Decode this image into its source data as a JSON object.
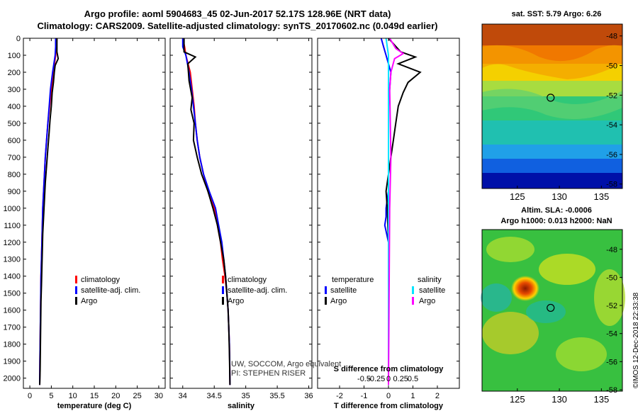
{
  "header": {
    "title_line1": "Argo profile: aoml 5904683_45 02-Jun-2017 52.17S 128.96E (NRT data)",
    "title_line2": "Climatology: CARS2009. Satellite-adjusted climatology: synTS_20170602.nc (0.049d earlier)"
  },
  "credits": {
    "line1": "UW, SOCCOM, Argo equivalent",
    "line2": "PI: STEPHEN RISER",
    "stamp": "©IMOS 12-Dec-2018 22:33:38"
  },
  "maps": {
    "sst_title": "sat. SST: 5.79 Argo: 6.26",
    "sla_title1": "Altim. SLA: -0.0006",
    "sla_title2": "Argo h1000: 0.013 h2000: NaN",
    "lon_ticks": [
      "125",
      "130",
      "135"
    ],
    "lat_ticks": [
      "-48",
      "-50",
      "-52",
      "-54",
      "-56",
      "-58"
    ],
    "float_lon": 128.96,
    "float_lat": -52.17
  },
  "colors": {
    "climatology": "#ff0000",
    "satellite": "#0000ff",
    "argo": "#000000",
    "s_satellite": "#00e5ff",
    "s_argo": "#ff00ff"
  },
  "chart_data": [
    {
      "type": "line",
      "xlabel": "temperature (deg C)",
      "ylabel": "",
      "xlim": [
        -1.5,
        31.5
      ],
      "ylim": [
        2060,
        0
      ],
      "xticks": [
        0,
        5,
        10,
        15,
        20,
        25,
        30
      ],
      "yticks": [
        0,
        100,
        200,
        300,
        400,
        500,
        600,
        700,
        800,
        900,
        1000,
        1100,
        1200,
        1300,
        1400,
        1500,
        1600,
        1700,
        1800,
        1900,
        2000
      ],
      "legend": [
        "climatology",
        "satellite-adj. clim.",
        "Argo"
      ],
      "series": [
        {
          "name": "climatology",
          "x": [
            6.3,
            6.2,
            6.0,
            5.5,
            5.0,
            4.6,
            4.2,
            3.9,
            3.6,
            3.4,
            3.2,
            3.0,
            2.9,
            2.8,
            2.7,
            2.6,
            2.55,
            2.5,
            2.45,
            2.4,
            2.35,
            2.3
          ],
          "y": [
            0,
            50,
            100,
            200,
            300,
            400,
            500,
            600,
            700,
            800,
            900,
            1000,
            1100,
            1200,
            1300,
            1400,
            1500,
            1600,
            1700,
            1800,
            1900,
            2040
          ]
        },
        {
          "name": "satellite-adj. clim.",
          "x": [
            6.0,
            6.0,
            5.9,
            5.3,
            4.8,
            4.5,
            4.2,
            3.9,
            3.6,
            3.4,
            3.2,
            3.0,
            2.9,
            2.8,
            2.7,
            2.6,
            2.55,
            2.5,
            2.45,
            2.4,
            2.35,
            2.3
          ],
          "y": [
            0,
            50,
            100,
            200,
            300,
            400,
            500,
            600,
            700,
            800,
            900,
            1000,
            1100,
            1200,
            1300,
            1400,
            1500,
            1600,
            1700,
            1800,
            1900,
            2040
          ]
        },
        {
          "name": "Argo",
          "x": [
            6.3,
            6.3,
            6.6,
            5.9,
            5.7,
            5.5,
            5.2,
            5.0,
            4.7,
            4.5,
            4.2,
            3.9,
            3.6,
            3.4,
            3.2,
            3.0,
            2.9,
            2.8,
            2.7,
            2.6,
            2.55,
            2.5,
            2.45,
            2.4,
            2.35,
            2.3
          ],
          "y": [
            0,
            80,
            120,
            160,
            200,
            260,
            320,
            400,
            480,
            550,
            650,
            750,
            850,
            950,
            1050,
            1150,
            1250,
            1350,
            1450,
            1550,
            1650,
            1750,
            1850,
            1950,
            2000,
            2040
          ]
        }
      ]
    },
    {
      "type": "line",
      "xlabel": "salinity",
      "ylabel": "",
      "xlim": [
        33.8,
        36.05
      ],
      "ylim": [
        2060,
        0
      ],
      "xticks": [
        34,
        34.5,
        35,
        35.5,
        36
      ],
      "xticklabels": [
        "34",
        "34.5",
        "35",
        "35.5",
        "36"
      ],
      "legend": [
        "climatology",
        "satellite-adj. clim.",
        "Argo"
      ],
      "series": [
        {
          "name": "climatology",
          "x": [
            34.0,
            34.03,
            34.05,
            34.12,
            34.15,
            34.18,
            34.2,
            34.23,
            34.27,
            34.33,
            34.4,
            34.5,
            34.55,
            34.6,
            34.63,
            34.67,
            34.7,
            34.72,
            34.73,
            34.74,
            34.745,
            34.75
          ],
          "y": [
            0,
            50,
            100,
            200,
            300,
            400,
            500,
            600,
            700,
            800,
            900,
            1000,
            1100,
            1200,
            1300,
            1400,
            1500,
            1600,
            1700,
            1800,
            1900,
            2040
          ]
        },
        {
          "name": "satellite-adj. clim.",
          "x": [
            34.0,
            34.0,
            34.05,
            34.1,
            34.14,
            34.17,
            34.2,
            34.23,
            34.27,
            34.33,
            34.42,
            34.52,
            34.57,
            34.62,
            34.65,
            34.68,
            34.7,
            34.72,
            34.73,
            34.74,
            34.745,
            34.75
          ],
          "y": [
            0,
            50,
            100,
            200,
            300,
            400,
            500,
            600,
            700,
            800,
            900,
            1000,
            1100,
            1200,
            1300,
            1400,
            1500,
            1600,
            1700,
            1800,
            1900,
            2040
          ]
        },
        {
          "name": "Argo",
          "x": [
            34.02,
            34.02,
            34.2,
            34.08,
            34.1,
            34.15,
            34.13,
            34.18,
            34.17,
            34.23,
            34.3,
            34.4,
            34.48,
            34.55,
            34.6,
            34.65,
            34.68,
            34.7,
            34.72,
            34.73,
            34.74,
            34.75
          ],
          "y": [
            0,
            80,
            110,
            150,
            250,
            350,
            420,
            500,
            600,
            700,
            800,
            900,
            1000,
            1100,
            1200,
            1300,
            1400,
            1500,
            1600,
            1700,
            1850,
            2040
          ]
        }
      ]
    },
    {
      "type": "line",
      "xlabel": "T difference from climatology",
      "xlabel2": "S difference from climatology",
      "xlim": [
        -2.9,
        2.9
      ],
      "ylim": [
        2060,
        0
      ],
      "xticks": [
        -2,
        -1,
        0,
        1,
        2
      ],
      "xticks2": [
        -0.5,
        -0.25,
        0,
        0.25,
        0.5
      ],
      "xticklabels2": [
        "-0.5",
        "-0.25",
        "0",
        "0.25",
        "0.5"
      ],
      "legend_temperature": [
        "temperature",
        "satellite",
        "Argo"
      ],
      "legend_salinity": [
        "salinity",
        "satellite",
        "Argo"
      ],
      "series": [
        {
          "name": "satellite",
          "x": [
            -0.3,
            -0.2,
            -0.1,
            0.1,
            0.05,
            0.0,
            0.0,
            0.0,
            0.0,
            -0.05,
            -0.1,
            -0.1,
            -0.15,
            0.0,
            0.0,
            0.0,
            0.0
          ],
          "y": [
            0,
            50,
            100,
            200,
            300,
            400,
            600,
            800,
            900,
            950,
            1000,
            1050,
            1100,
            1200,
            1500,
            1800,
            2040
          ]
        },
        {
          "name": "Argo",
          "x": [
            0.0,
            0.5,
            1.1,
            0.4,
            1.3,
            0.8,
            0.6,
            0.4,
            0.3,
            0.2,
            0.1,
            0.0,
            -0.1,
            -0.05,
            0.0,
            0.0
          ],
          "y": [
            0,
            80,
            110,
            150,
            200,
            260,
            320,
            400,
            500,
            600,
            700,
            800,
            900,
            1000,
            1200,
            2040
          ]
        },
        {
          "name": "salinity satellite",
          "x": [
            -0.2,
            -0.1,
            0.0,
            0.0,
            0.0,
            0.0,
            0.0,
            0.0
          ],
          "y": [
            0,
            50,
            100,
            200,
            500,
            1000,
            1500,
            2040
          ]
        },
        {
          "name": "salinity Argo",
          "x": [
            0.1,
            0.6,
            1.2,
            0.5,
            0.2,
            0.1,
            0.15,
            0.2,
            0.1,
            0.0
          ],
          "y": [
            0,
            60,
            90,
            120,
            200,
            300,
            500,
            700,
            1000,
            2040
          ]
        }
      ]
    }
  ]
}
